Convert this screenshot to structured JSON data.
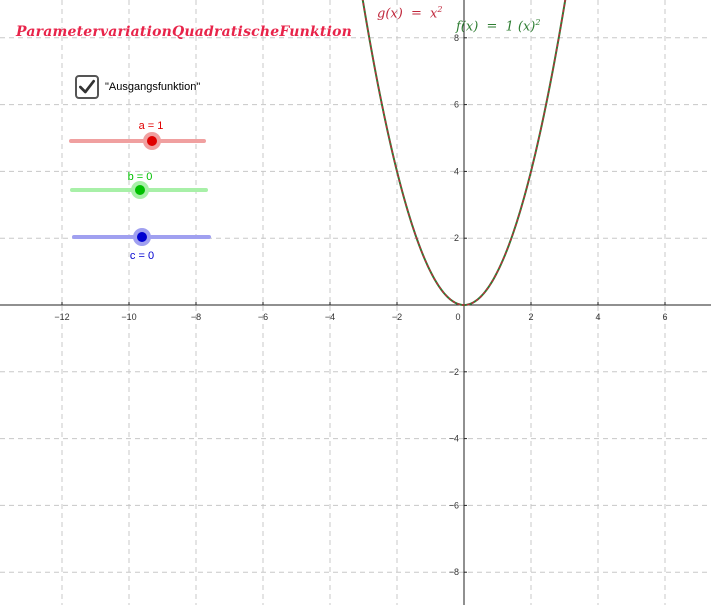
{
  "title": "ParametervariationQuadratischeFunktion",
  "checkbox": {
    "label": "\"Ausgangsfunktion\"",
    "checked": true
  },
  "sliders": {
    "a": {
      "label": "a = 1",
      "value": 1,
      "color": "#e00000",
      "track_color": "#f0a0a0"
    },
    "b": {
      "label": "b = 0",
      "value": 0,
      "color": "#00c000",
      "track_color": "#a8f0a8"
    },
    "c": {
      "label": "c = 0",
      "value": 0,
      "color": "#0000d0",
      "track_color": "#a0a0f0"
    }
  },
  "functions": {
    "g": {
      "name": "g(x)",
      "eq": "=",
      "rhs": "x",
      "exp": "2",
      "color": "#c0283c"
    },
    "f": {
      "name": "f(x)",
      "eq": "=",
      "rhs": "1 (x)",
      "exp": "2",
      "color": "#2e7d32"
    }
  },
  "axes": {
    "x_ticks": [
      "−12",
      "−10",
      "−8",
      "−6",
      "−4",
      "−2",
      "0",
      "2",
      "4",
      "6"
    ],
    "y_ticks": [
      "8",
      "6",
      "4",
      "2",
      "−2",
      "−4",
      "−6",
      "−8"
    ]
  }
}
